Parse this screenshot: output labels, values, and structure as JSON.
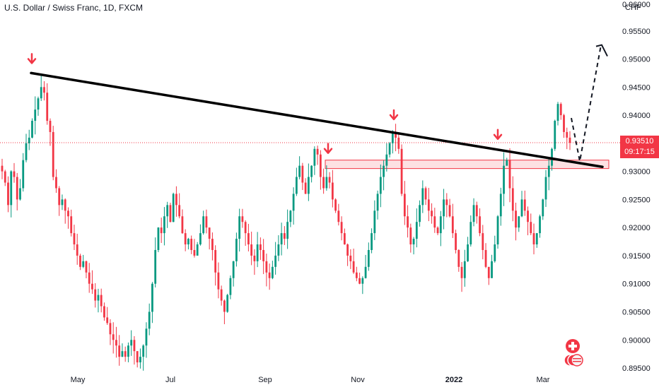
{
  "header": {
    "symbol_title": "U.S. Dollar / Swiss Franc, 1D, FXCM",
    "currency": "CHF"
  },
  "price_axis": {
    "ticks": [
      "0.95500",
      "0.95000",
      "0.94500",
      "0.94000",
      "0.93000",
      "0.92500",
      "0.92000",
      "0.91500",
      "0.91000",
      "0.90500",
      "0.90000",
      "0.89500"
    ],
    "top_partial": "0.96000"
  },
  "time_axis": {
    "labels": [
      "May",
      "Jul",
      "Sep",
      "Nov",
      "2022",
      "Mar"
    ]
  },
  "last_price": {
    "value": "0.93510",
    "countdown": "09:17:15"
  },
  "colors": {
    "up": "#089981",
    "down": "#f23645",
    "trendline": "#000000",
    "zone_fill": "rgba(242,54,69,0.15)",
    "zone_border": "#f23645",
    "price_line": "#f23645"
  },
  "icons": {
    "down_arrow": "arrow-down-icon",
    "swiss_flag": "swiss-flag-icon",
    "us_flag": "us-flag-icon"
  },
  "chart_data": {
    "type": "candlestick",
    "title": "U.S. Dollar / Swiss Franc, 1D, FXCM",
    "xlabel": "",
    "ylabel": "",
    "ylim": [
      0.8945,
      0.9605
    ],
    "x_tick_labels": [
      "May",
      "Jul",
      "Sep",
      "Nov",
      "2022",
      "Mar"
    ],
    "y_tick_values": [
      0.955,
      0.95,
      0.945,
      0.94,
      0.93,
      0.925,
      0.92,
      0.915,
      0.91,
      0.905,
      0.9,
      0.895
    ],
    "last_price": 0.9351,
    "resistance_zone": [
      0.9305,
      0.932
    ],
    "trendline": {
      "from": {
        "bar": 0,
        "price": 0.9475
      },
      "to": {
        "bar": 1,
        "price": 0.9308
      }
    },
    "projection_path": [
      0.9318,
      0.932,
      0.9525,
      0.9505
    ],
    "marked_highs": [
      0.9475,
      0.9315,
      0.9375,
      0.934
    ],
    "closes": [
      0.93,
      0.928,
      0.924,
      0.93,
      0.929,
      0.925,
      0.927,
      0.932,
      0.935,
      0.936,
      0.939,
      0.941,
      0.943,
      0.945,
      0.944,
      0.939,
      0.937,
      0.929,
      0.927,
      0.924,
      0.925,
      0.923,
      0.922,
      0.919,
      0.917,
      0.915,
      0.913,
      0.914,
      0.912,
      0.91,
      0.909,
      0.907,
      0.908,
      0.906,
      0.904,
      0.903,
      0.901,
      0.9,
      0.899,
      0.897,
      0.898,
      0.897,
      0.899,
      0.9,
      0.898,
      0.896,
      0.897,
      0.899,
      0.902,
      0.905,
      0.91,
      0.916,
      0.92,
      0.919,
      0.922,
      0.924,
      0.921,
      0.926,
      0.924,
      0.922,
      0.919,
      0.917,
      0.918,
      0.916,
      0.915,
      0.917,
      0.919,
      0.922,
      0.92,
      0.918,
      0.916,
      0.912,
      0.909,
      0.907,
      0.905,
      0.908,
      0.911,
      0.914,
      0.918,
      0.922,
      0.921,
      0.919,
      0.917,
      0.915,
      0.914,
      0.917,
      0.916,
      0.914,
      0.912,
      0.911,
      0.913,
      0.915,
      0.917,
      0.919,
      0.918,
      0.921,
      0.923,
      0.926,
      0.929,
      0.931,
      0.928,
      0.926,
      0.929,
      0.931,
      0.934,
      0.933,
      0.929,
      0.927,
      0.929,
      0.928,
      0.925,
      0.923,
      0.921,
      0.919,
      0.917,
      0.915,
      0.914,
      0.912,
      0.911,
      0.91,
      0.911,
      0.913,
      0.916,
      0.919,
      0.923,
      0.926,
      0.929,
      0.931,
      0.933,
      0.935,
      0.937,
      0.936,
      0.934,
      0.926,
      0.922,
      0.92,
      0.917,
      0.918,
      0.921,
      0.924,
      0.927,
      0.925,
      0.923,
      0.922,
      0.92,
      0.919,
      0.922,
      0.925,
      0.924,
      0.922,
      0.919,
      0.916,
      0.913,
      0.911,
      0.914,
      0.917,
      0.921,
      0.924,
      0.922,
      0.919,
      0.916,
      0.913,
      0.911,
      0.914,
      0.917,
      0.922,
      0.926,
      0.931,
      0.932,
      0.927,
      0.923,
      0.92,
      0.922,
      0.925,
      0.923,
      0.921,
      0.919,
      0.917,
      0.919,
      0.922,
      0.925,
      0.929,
      0.931,
      0.934,
      0.939,
      0.942,
      0.94,
      0.937,
      0.936,
      0.9351
    ]
  }
}
